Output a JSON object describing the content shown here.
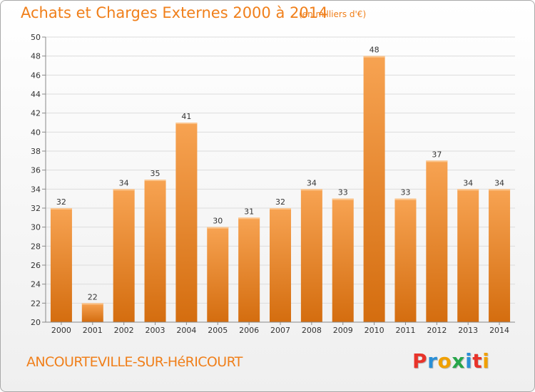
{
  "chart_data": {
    "type": "bar",
    "title": "Achats et Charges Externes 2000 à 2014",
    "subtitle": "(en milliers d'€)",
    "categories": [
      "2000",
      "2001",
      "2002",
      "2003",
      "2004",
      "2005",
      "2006",
      "2007",
      "2008",
      "2009",
      "2010",
      "2011",
      "2012",
      "2013",
      "2014"
    ],
    "values": [
      32,
      22,
      34,
      35,
      41,
      30,
      31,
      32,
      34,
      33,
      48,
      33,
      37,
      34,
      34
    ],
    "ylim": [
      20,
      50
    ],
    "yticks": [
      20,
      22,
      24,
      26,
      28,
      30,
      32,
      34,
      36,
      38,
      40,
      42,
      44,
      46,
      48,
      50
    ],
    "grid": true,
    "bar_color_top": "#f7a352",
    "bar_color_bottom": "#d46d0f"
  },
  "footer": {
    "commune": "ANCOURTEVILLE-SUR-HéRICOURT",
    "logo_letters": [
      {
        "ch": "P",
        "color": "#e8332a"
      },
      {
        "ch": "r",
        "color": "#2a8fd6"
      },
      {
        "ch": "o",
        "color": "#f0a000"
      },
      {
        "ch": "x",
        "color": "#27a64a"
      },
      {
        "ch": "i",
        "color": "#2a8fd6"
      },
      {
        "ch": "t",
        "color": "#e8332a"
      },
      {
        "ch": "i",
        "color": "#f0a000"
      }
    ]
  },
  "colors": {
    "accent": "#f07f1a"
  }
}
